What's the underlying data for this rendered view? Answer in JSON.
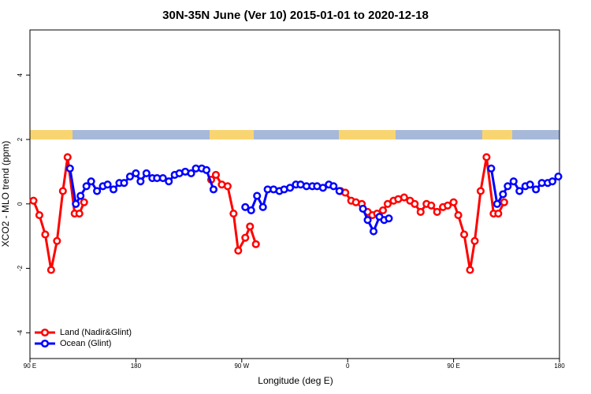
{
  "chart_data": {
    "type": "line",
    "title": "30N-35N June (Ver 10)   2015-01-01 to 2020-12-18",
    "x_label": "Longitude (deg E)",
    "y_label": "XCO2 - MLO trend (ppm)",
    "xlim": [
      90,
      540
    ],
    "xticks": [
      {
        "value": 90,
        "label": "90 E"
      },
      {
        "value": 180,
        "label": "180"
      },
      {
        "value": 270,
        "label": "90 W"
      },
      {
        "value": 360,
        "label": "0"
      },
      {
        "value": 450,
        "label": "90 E"
      },
      {
        "value": 540,
        "label": "180"
      }
    ],
    "ylim": [
      -4.8,
      5.4
    ],
    "yticks": [
      -4,
      -2,
      0,
      2,
      4
    ],
    "legend": "bottom-left",
    "series": [
      {
        "name": "Land (Nadir&Glint)",
        "color": "#ff0000",
        "x": [
          93,
          98,
          103,
          108,
          113,
          118,
          122,
          128,
          132,
          136,
          140,
          244,
          248,
          253,
          258,
          263,
          267,
          273,
          277,
          282,
          300,
          354,
          358,
          363,
          367,
          372,
          377,
          381,
          385,
          390,
          394,
          399,
          403,
          408,
          413,
          417,
          422,
          427,
          431,
          436,
          441,
          445,
          450,
          454,
          459,
          464,
          468,
          473,
          478,
          484,
          488,
          493
        ],
        "values": [
          0.1,
          -0.35,
          -0.95,
          -2.05,
          -1.15,
          0.4,
          1.45,
          -0.3,
          -0.3,
          0.05,
          null,
          0.75,
          0.9,
          0.6,
          0.55,
          -0.3,
          -1.45,
          -1.05,
          -0.7,
          -1.25,
          null,
          0.4,
          0.35,
          0.1,
          0.05,
          0.0,
          -0.25,
          -0.35,
          -0.3,
          -0.2,
          0.0,
          0.1,
          0.15,
          0.2,
          0.1,
          0.0,
          -0.25,
          0.0,
          -0.05,
          -0.25,
          -0.1,
          -0.05,
          0.05,
          -0.35,
          -0.95,
          -2.05,
          -1.15,
          0.4,
          1.45,
          -0.3,
          -0.3,
          0.05
        ]
      },
      {
        "name": "Ocean (Glint)",
        "color": "#0000ff",
        "x": [
          124,
          129,
          133,
          138,
          142,
          147,
          152,
          156,
          161,
          166,
          170,
          175,
          180,
          184,
          189,
          194,
          198,
          203,
          208,
          213,
          217,
          222,
          227,
          231,
          236,
          240,
          246,
          280,
          273,
          278,
          283,
          288,
          292,
          297,
          302,
          306,
          311,
          316,
          320,
          325,
          330,
          334,
          339,
          344,
          348,
          353,
          357,
          373,
          377,
          382,
          387,
          391,
          395,
          400,
          482,
          487,
          492,
          496,
          501,
          506,
          511,
          515,
          520,
          525,
          530,
          534,
          539
        ],
        "values": [
          1.1,
          0.0,
          0.25,
          0.55,
          0.7,
          0.4,
          0.55,
          0.6,
          0.45,
          0.65,
          0.65,
          0.85,
          0.95,
          0.7,
          0.95,
          0.8,
          0.8,
          0.8,
          0.7,
          0.9,
          0.95,
          1.0,
          0.95,
          1.1,
          1.1,
          1.05,
          0.45,
          null,
          -0.1,
          -0.2,
          0.25,
          -0.1,
          0.45,
          0.45,
          0.4,
          0.45,
          0.5,
          0.6,
          0.6,
          0.55,
          0.55,
          0.55,
          0.5,
          0.6,
          0.55,
          0.4,
          null,
          -0.15,
          -0.5,
          -0.85,
          -0.4,
          -0.5,
          -0.45,
          null,
          1.1,
          0.0,
          0.3,
          0.55,
          0.7,
          0.4,
          0.55,
          0.6,
          0.45,
          0.65,
          0.65,
          0.7,
          0.85
        ]
      }
    ]
  }
}
